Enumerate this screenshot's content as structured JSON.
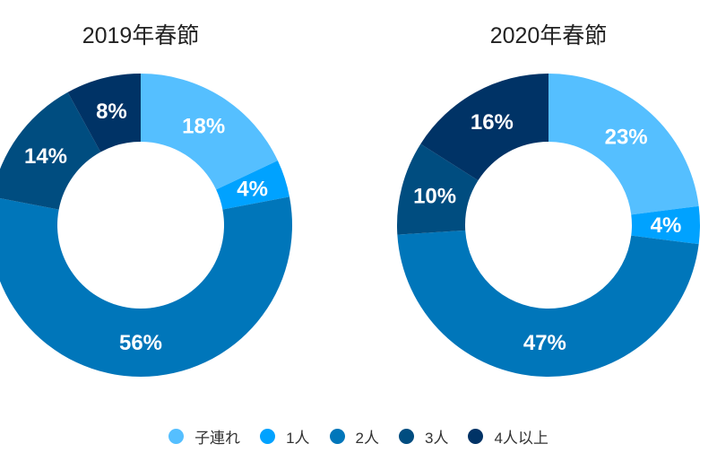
{
  "chart_data": [
    {
      "type": "pie",
      "title": "2019年春節",
      "donut": true,
      "categories": [
        "子連れ",
        "1人",
        "2人",
        "3人",
        "4人以上"
      ],
      "values": [
        18,
        4,
        56,
        14,
        8
      ],
      "labels": [
        "18%",
        "4%",
        "56%",
        "14%",
        "8%"
      ]
    },
    {
      "type": "pie",
      "title": "2020年春節",
      "donut": true,
      "categories": [
        "子連れ",
        "1人",
        "2人",
        "3人",
        "4人以上"
      ],
      "values": [
        23,
        4,
        47,
        10,
        16
      ],
      "labels": [
        "23%",
        "4%",
        "47%",
        "10%",
        "16%"
      ]
    }
  ],
  "legend": {
    "placement": "bottom",
    "items": [
      "子連れ",
      "1人",
      "2人",
      "3人",
      "4人以上"
    ]
  },
  "colors": [
    "#55bfff",
    "#00a2ff",
    "#0076ba",
    "#004d80",
    "#003366"
  ]
}
